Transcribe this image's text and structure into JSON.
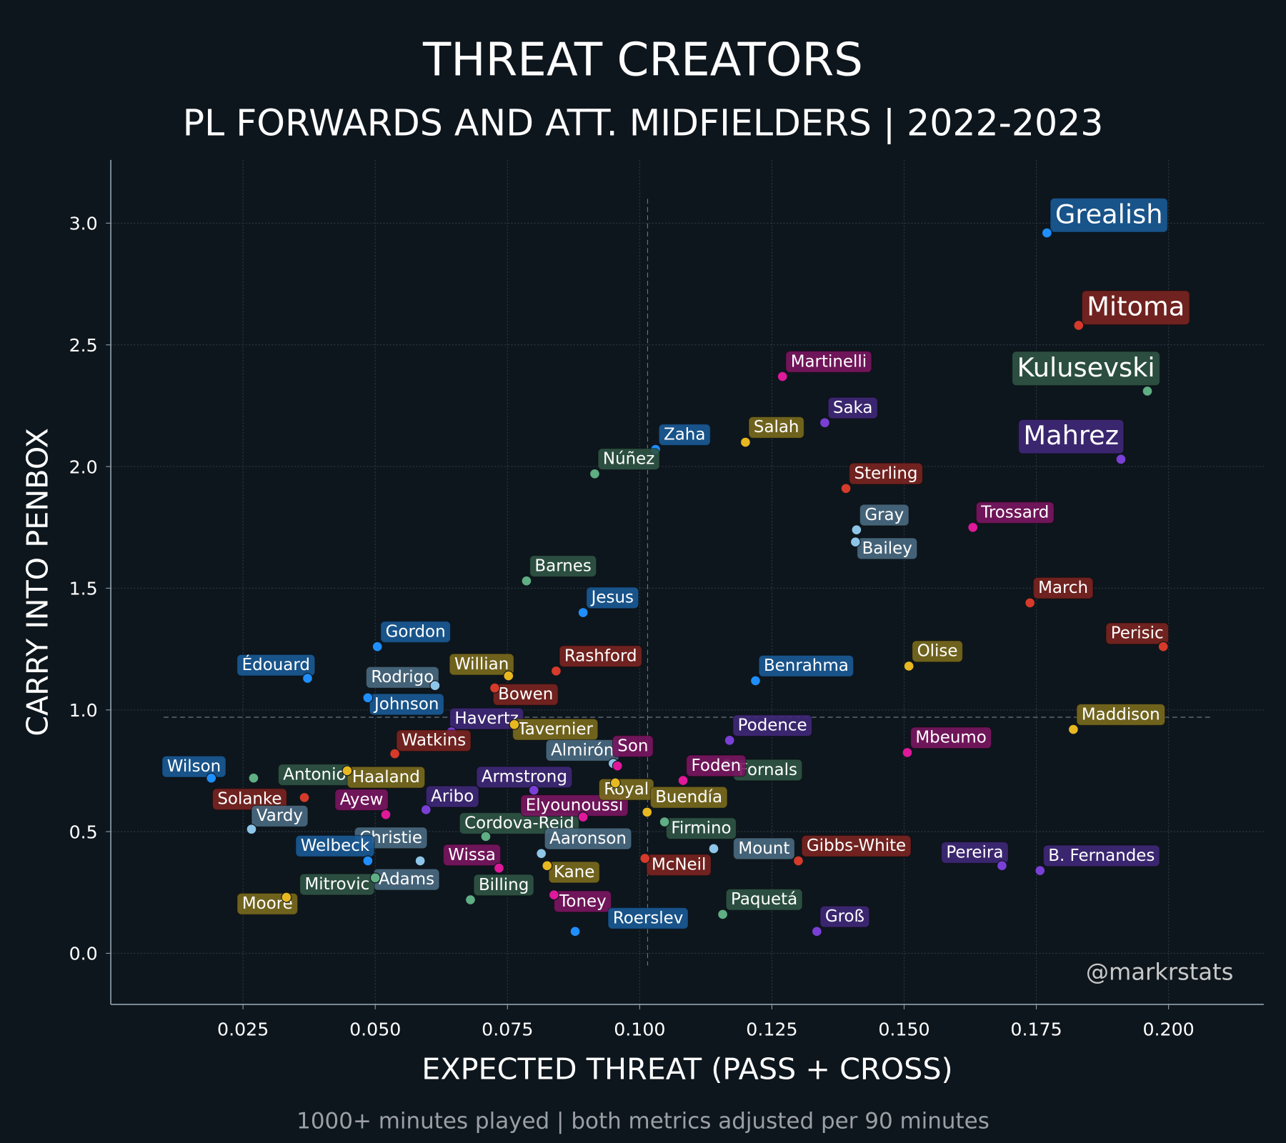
{
  "title": "THREAT CREATORS",
  "subtitle": "PL FORWARDS AND ATT. MIDFIELDERS | 2022-2023",
  "footnote": "1000+ minutes played | both metrics adjusted per 90 minutes",
  "watermark": "@markrstats",
  "colors": {
    "background": "#0e161d",
    "blue": [
      "#1f8fff",
      "#1a5a96"
    ],
    "red": [
      "#d63a2a",
      "#7a2420"
    ],
    "green": [
      "#5fae84",
      "#2f5446"
    ],
    "purple": [
      "#7a3fd6",
      "#3f2878"
    ],
    "pink": [
      "#e0189a",
      "#7a1560"
    ],
    "gold": [
      "#e8b820",
      "#7a6a1e"
    ],
    "lightblue": [
      "#8ec6e8",
      "#4a6a82"
    ]
  },
  "chart_data": {
    "type": "scatter",
    "xlabel": "EXPECTED THREAT (PASS + CROSS)",
    "ylabel": "CARRY INTO PENBOX",
    "xlim": [
      0.0,
      0.218
    ],
    "ylim": [
      -0.21,
      3.26
    ],
    "xticks": [
      "0.025",
      "0.050",
      "0.075",
      "0.100",
      "0.125",
      "0.150",
      "0.175",
      "0.200"
    ],
    "yticks": [
      "0.0",
      "0.5",
      "1.0",
      "1.5",
      "2.0",
      "2.5",
      "3.0"
    ],
    "grid": true,
    "reference_lines": {
      "x_mean": 0.1015,
      "y_mean": 0.97
    },
    "points": [
      {
        "name": "Grealish",
        "x": 0.177,
        "y": 2.96,
        "team": "blue",
        "highlight": true
      },
      {
        "name": "Mitoma",
        "x": 0.183,
        "y": 2.58,
        "team": "red",
        "highlight": true
      },
      {
        "name": "Kulusevski",
        "x": 0.196,
        "y": 2.31,
        "team": "green",
        "highlight": true
      },
      {
        "name": "Mahrez",
        "x": 0.191,
        "y": 2.03,
        "team": "purple",
        "highlight": true
      },
      {
        "name": "Martinelli",
        "x": 0.127,
        "y": 2.37,
        "team": "pink"
      },
      {
        "name": "Saka",
        "x": 0.135,
        "y": 2.18,
        "team": "purple"
      },
      {
        "name": "Salah",
        "x": 0.12,
        "y": 2.1,
        "team": "gold"
      },
      {
        "name": "Zaha",
        "x": 0.103,
        "y": 2.07,
        "team": "blue"
      },
      {
        "name": "Núñez",
        "x": 0.0915,
        "y": 1.97,
        "team": "green"
      },
      {
        "name": "Sterling",
        "x": 0.139,
        "y": 1.91,
        "team": "red"
      },
      {
        "name": "Gray",
        "x": 0.141,
        "y": 1.74,
        "team": "lightblue"
      },
      {
        "name": "Bailey",
        "x": 0.1408,
        "y": 1.69,
        "team": "lightblue"
      },
      {
        "name": "Trossard",
        "x": 0.163,
        "y": 1.75,
        "team": "pink"
      },
      {
        "name": "Barnes",
        "x": 0.0786,
        "y": 1.53,
        "team": "green"
      },
      {
        "name": "Jesus",
        "x": 0.0893,
        "y": 1.4,
        "team": "blue"
      },
      {
        "name": "March",
        "x": 0.1738,
        "y": 1.44,
        "team": "red"
      },
      {
        "name": "Perisic",
        "x": 0.199,
        "y": 1.26,
        "team": "red"
      },
      {
        "name": "Gordon",
        "x": 0.0504,
        "y": 1.26,
        "team": "blue"
      },
      {
        "name": "Édouard",
        "x": 0.0372,
        "y": 1.13,
        "team": "blue"
      },
      {
        "name": "Rodrigo",
        "x": 0.0613,
        "y": 1.1,
        "team": "lightblue"
      },
      {
        "name": "Johnson",
        "x": 0.0486,
        "y": 1.05,
        "team": "blue"
      },
      {
        "name": "Willian",
        "x": 0.0752,
        "y": 1.14,
        "team": "gold"
      },
      {
        "name": "Rashford",
        "x": 0.0842,
        "y": 1.16,
        "team": "red"
      },
      {
        "name": "Bowen",
        "x": 0.0726,
        "y": 1.09,
        "team": "red"
      },
      {
        "name": "Benrahma",
        "x": 0.1219,
        "y": 1.12,
        "team": "blue"
      },
      {
        "name": "Olise",
        "x": 0.1509,
        "y": 1.18,
        "team": "gold"
      },
      {
        "name": "Maddison",
        "x": 0.182,
        "y": 0.92,
        "team": "gold"
      },
      {
        "name": "Havertz",
        "x": 0.0644,
        "y": 0.91,
        "team": "purple"
      },
      {
        "name": "Tavernier",
        "x": 0.0763,
        "y": 0.94,
        "team": "gold"
      },
      {
        "name": "Watkins",
        "x": 0.0537,
        "y": 0.82,
        "team": "red"
      },
      {
        "name": "Almirón",
        "x": 0.095,
        "y": 0.78,
        "team": "lightblue"
      },
      {
        "name": "Son",
        "x": 0.0958,
        "y": 0.77,
        "team": "pink"
      },
      {
        "name": "Podence",
        "x": 0.117,
        "y": 0.875,
        "team": "purple"
      },
      {
        "name": "Fornals",
        "x": 0.1165,
        "y": 0.78,
        "team": "green"
      },
      {
        "name": "Mbeumo",
        "x": 0.1506,
        "y": 0.825,
        "team": "pink"
      },
      {
        "name": "Foden",
        "x": 0.1082,
        "y": 0.71,
        "team": "pink"
      },
      {
        "name": "Wilson",
        "x": 0.019,
        "y": 0.72,
        "team": "blue"
      },
      {
        "name": "Antonio",
        "x": 0.027,
        "y": 0.72,
        "team": "green"
      },
      {
        "name": "Solanke",
        "x": 0.0366,
        "y": 0.64,
        "team": "red"
      },
      {
        "name": "Haaland",
        "x": 0.0447,
        "y": 0.75,
        "team": "gold"
      },
      {
        "name": "Vardy",
        "x": 0.0266,
        "y": 0.51,
        "team": "lightblue"
      },
      {
        "name": "Ayew",
        "x": 0.052,
        "y": 0.57,
        "team": "pink"
      },
      {
        "name": "Aribo",
        "x": 0.0596,
        "y": 0.59,
        "team": "purple"
      },
      {
        "name": "Christie",
        "x": 0.0585,
        "y": 0.38,
        "team": "lightblue"
      },
      {
        "name": "Cordova-Reid",
        "x": 0.0709,
        "y": 0.48,
        "team": "green"
      },
      {
        "name": "Armstrong",
        "x": 0.08,
        "y": 0.67,
        "team": "purple"
      },
      {
        "name": "Elyounoussi",
        "x": 0.0893,
        "y": 0.56,
        "team": "pink"
      },
      {
        "name": "Royal",
        "x": 0.0954,
        "y": 0.7,
        "team": "gold"
      },
      {
        "name": "Buendía",
        "x": 0.1014,
        "y": 0.58,
        "team": "gold"
      },
      {
        "name": "Firmino",
        "x": 0.1047,
        "y": 0.54,
        "team": "green"
      },
      {
        "name": "Aaronson",
        "x": 0.0814,
        "y": 0.41,
        "team": "lightblue"
      },
      {
        "name": "Kane",
        "x": 0.0825,
        "y": 0.36,
        "team": "gold"
      },
      {
        "name": "Mount",
        "x": 0.114,
        "y": 0.43,
        "team": "lightblue"
      },
      {
        "name": "McNeil",
        "x": 0.101,
        "y": 0.39,
        "team": "red"
      },
      {
        "name": "Gibbs-White",
        "x": 0.13,
        "y": 0.38,
        "team": "red"
      },
      {
        "name": "Pereira",
        "x": 0.1685,
        "y": 0.36,
        "team": "purple"
      },
      {
        "name": "B. Fernandes",
        "x": 0.1757,
        "y": 0.34,
        "team": "purple"
      },
      {
        "name": "Welbeck",
        "x": 0.0486,
        "y": 0.38,
        "team": "blue"
      },
      {
        "name": "Adams",
        "x": 0.05,
        "y": 0.31,
        "team": "lightblue"
      },
      {
        "name": "Mitrovic",
        "x": 0.05,
        "y": 0.31,
        "team": "green"
      },
      {
        "name": "Moore",
        "x": 0.0332,
        "y": 0.23,
        "team": "gold"
      },
      {
        "name": "Wissa",
        "x": 0.0734,
        "y": 0.35,
        "team": "pink"
      },
      {
        "name": "Billing",
        "x": 0.068,
        "y": 0.22,
        "team": "green"
      },
      {
        "name": "Toney",
        "x": 0.0838,
        "y": 0.24,
        "team": "pink"
      },
      {
        "name": "Roerslev",
        "x": 0.0878,
        "y": 0.09,
        "team": "blue"
      },
      {
        "name": "Paquetá",
        "x": 0.1157,
        "y": 0.16,
        "team": "green"
      },
      {
        "name": "Groß",
        "x": 0.1335,
        "y": 0.09,
        "team": "purple"
      }
    ]
  }
}
